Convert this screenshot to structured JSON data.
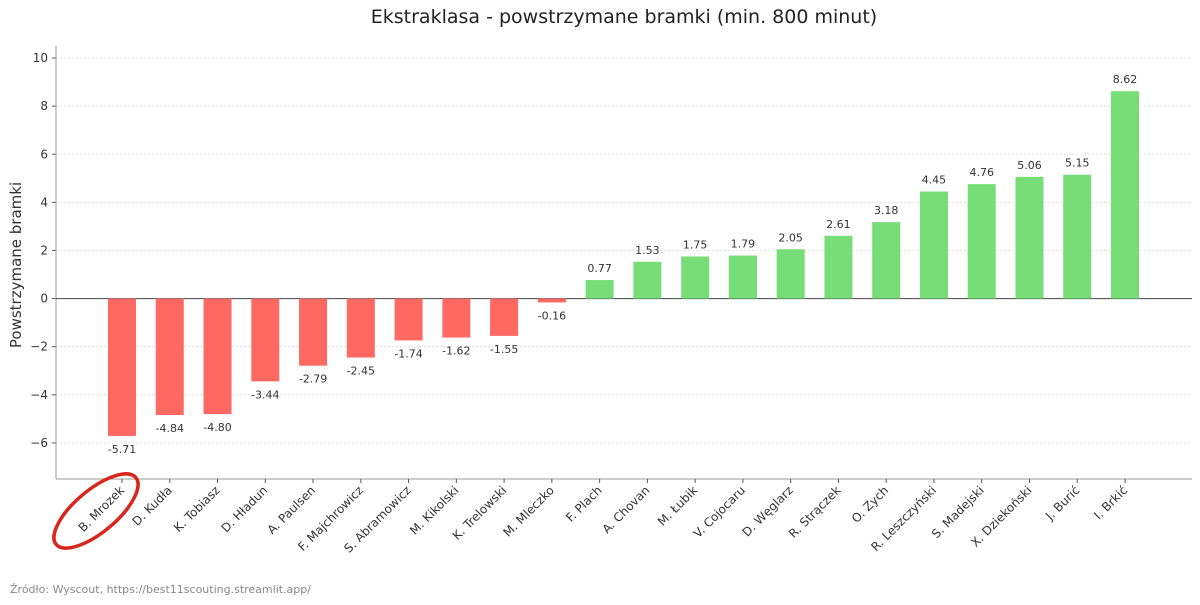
{
  "chart_data": {
    "type": "bar",
    "title": "Ekstraklasa - powstrzymane bramki (min. 800 minut)",
    "xlabel": "",
    "ylabel": "Powstrzymane bramki",
    "ylim": [
      -7.5,
      10.5
    ],
    "yticks": [
      -6,
      -4,
      -2,
      0,
      2,
      4,
      6,
      8,
      10
    ],
    "grid": true,
    "categories": [
      "B. Mrozek",
      "D. Kudła",
      "K. Tobiasz",
      "D. Hładun",
      "A. Paulsen",
      "F. Majchrowicz",
      "S. Abramowicz",
      "M. Kikolski",
      "K. Trelowski",
      "M. Mleczko",
      "F. Plach",
      "A. Chovan",
      "M. Łubik",
      "V. Cojocaru",
      "D. Węglarz",
      "R. Strączek",
      "O. Zych",
      "R. Leszczyński",
      "S. Madejski",
      "X. Dziekoński",
      "J. Burić",
      "I. Brkić"
    ],
    "values": [
      -5.71,
      -4.84,
      -4.8,
      -3.44,
      -2.79,
      -2.45,
      -1.74,
      -1.62,
      -1.55,
      -0.16,
      0.77,
      1.53,
      1.75,
      1.79,
      2.05,
      2.61,
      3.18,
      4.45,
      4.76,
      5.06,
      5.15,
      8.62
    ],
    "value_labels": [
      "-5.71",
      "-4.84",
      "-4.80",
      "-3.44",
      "-2.79",
      "-2.45",
      "-1.74",
      "-1.62",
      "-1.55",
      "-0.16",
      "0.77",
      "1.53",
      "1.75",
      "1.79",
      "2.05",
      "2.61",
      "3.18",
      "4.45",
      "4.76",
      "5.06",
      "5.15",
      "8.62"
    ],
    "colors": {
      "negative": "#ff6961",
      "positive": "#77dd77",
      "highlight": "#d9261c"
    },
    "highlighted_category": "B. Mrozek"
  },
  "source": "Źródło: Wyscout, https://best11scouting.streamlit.app/"
}
